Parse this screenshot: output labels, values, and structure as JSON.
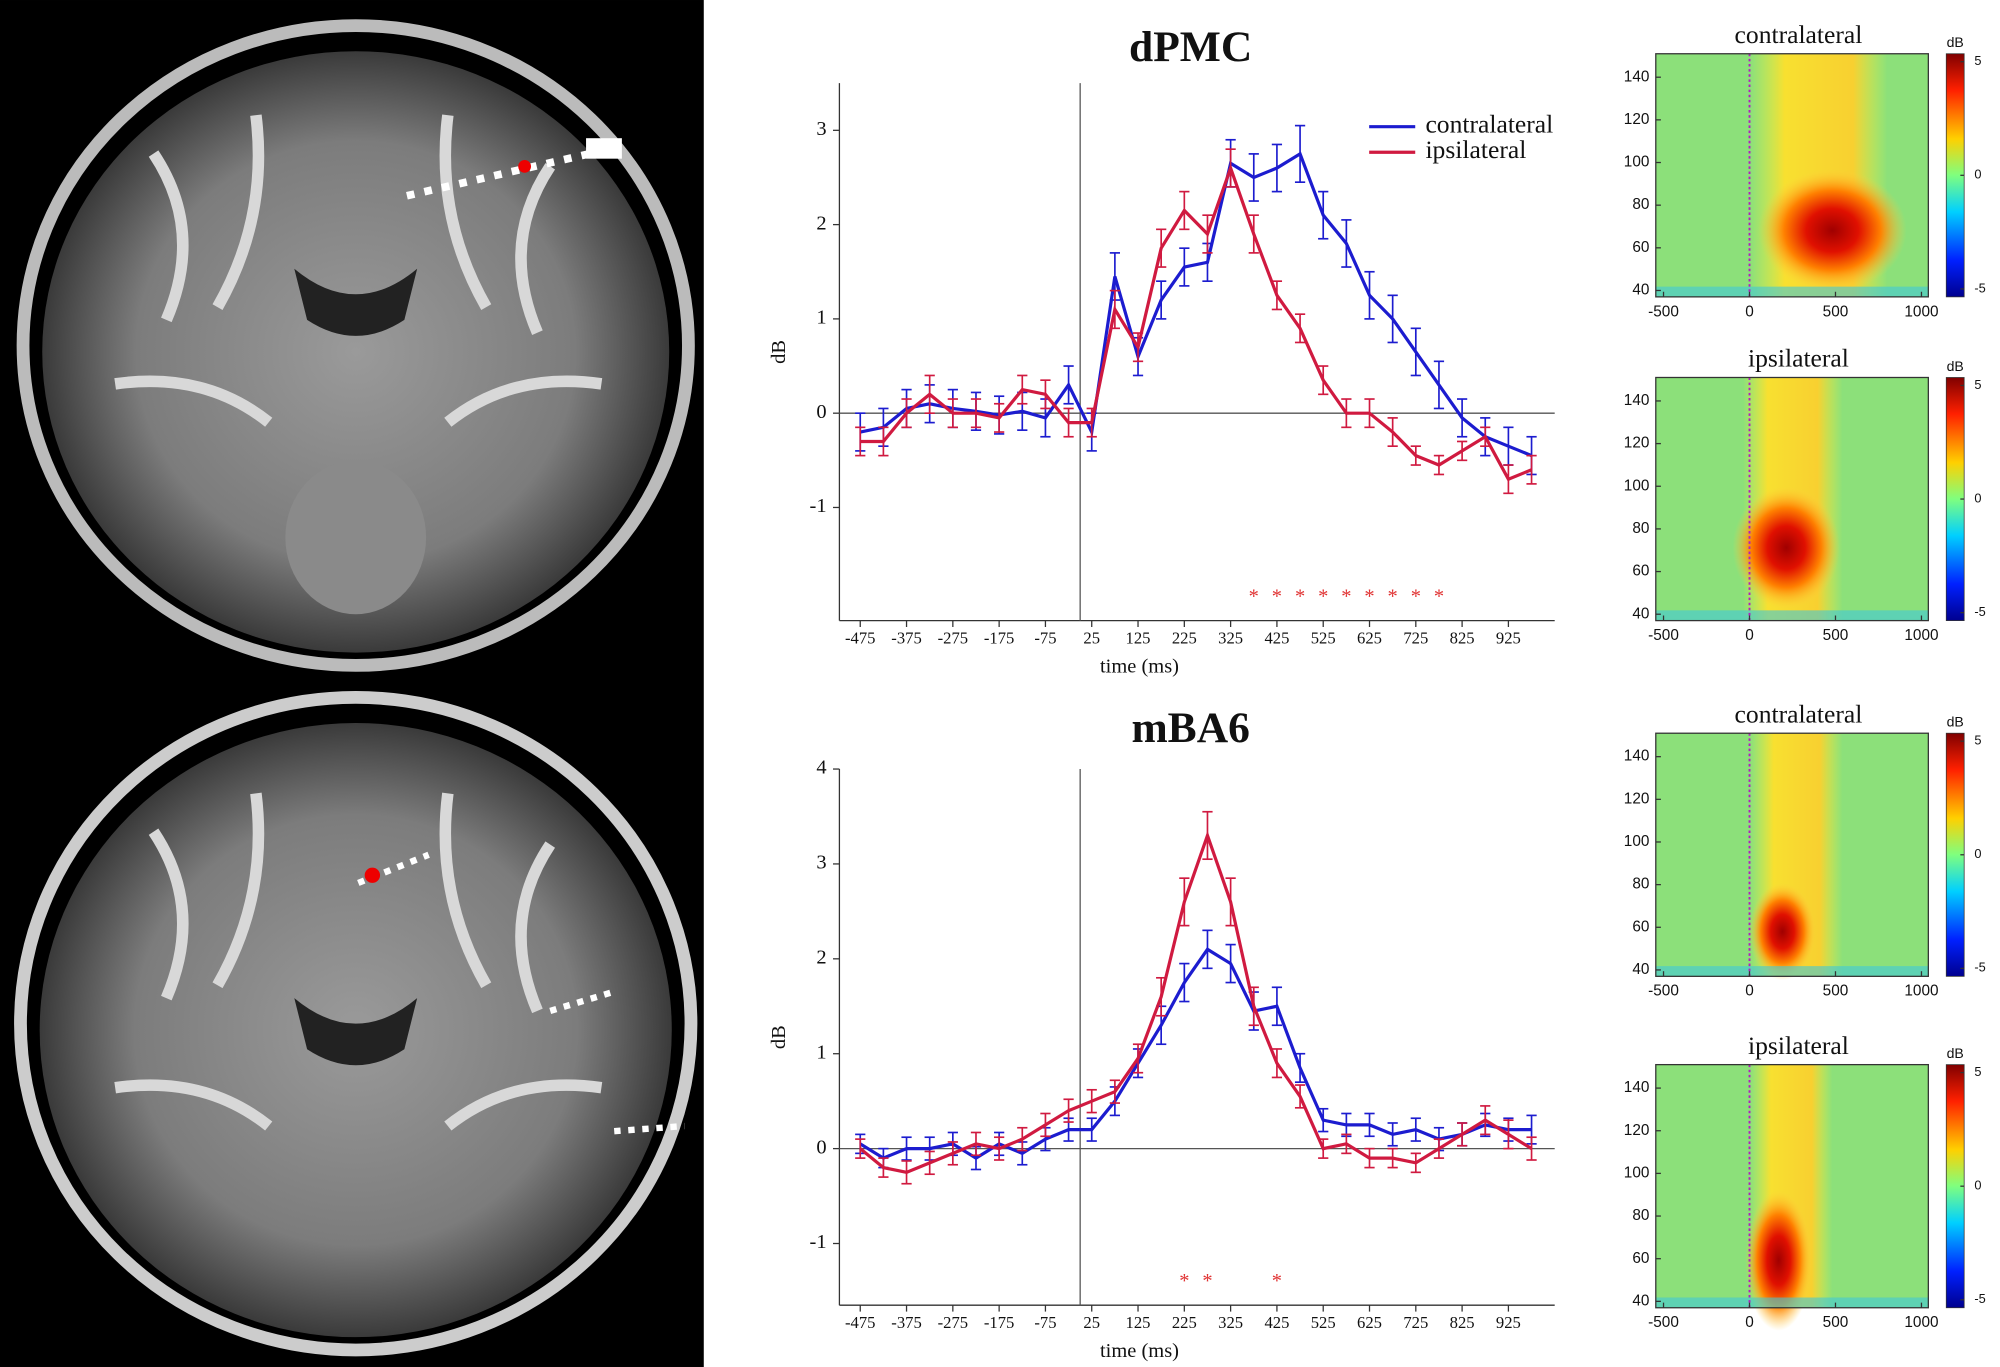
{
  "chart_data": [
    {
      "type": "line",
      "title": "dPMC",
      "x_label": "time (ms)",
      "y_label": "dB",
      "x": [
        -475,
        -425,
        -375,
        -325,
        -275,
        -225,
        -175,
        -125,
        -75,
        -25,
        25,
        75,
        125,
        175,
        225,
        275,
        325,
        375,
        425,
        475,
        525,
        575,
        625,
        675,
        725,
        775,
        825,
        875,
        925,
        975
      ],
      "series": [
        {
          "name": "contralateral",
          "color": "#1c1ccf",
          "values": [
            -0.2,
            -0.15,
            0.05,
            0.1,
            0.05,
            0.02,
            -0.02,
            0.02,
            -0.05,
            0.3,
            -0.2,
            1.45,
            0.6,
            1.2,
            1.55,
            1.6,
            2.65,
            2.5,
            2.6,
            2.75,
            2.1,
            1.8,
            1.25,
            1.0,
            0.65,
            0.3,
            -0.05,
            -0.25,
            -0.35,
            -0.45
          ],
          "errors": [
            0.2,
            0.2,
            0.2,
            0.2,
            0.2,
            0.2,
            0.2,
            0.2,
            0.2,
            0.2,
            0.2,
            0.25,
            0.2,
            0.2,
            0.2,
            0.2,
            0.25,
            0.25,
            0.25,
            0.3,
            0.25,
            0.25,
            0.25,
            0.25,
            0.25,
            0.25,
            0.2,
            0.2,
            0.2,
            0.2
          ]
        },
        {
          "name": "ipsilateral",
          "color": "#d01a40",
          "values": [
            -0.3,
            -0.3,
            0.0,
            0.2,
            0.0,
            0.0,
            -0.05,
            0.25,
            0.2,
            -0.1,
            -0.1,
            1.1,
            0.7,
            1.75,
            2.15,
            1.9,
            2.6,
            1.9,
            1.25,
            0.9,
            0.35,
            0.0,
            0.0,
            -0.2,
            -0.45,
            -0.55,
            -0.4,
            -0.25,
            -0.7,
            -0.6
          ],
          "errors": [
            0.15,
            0.15,
            0.15,
            0.2,
            0.15,
            0.15,
            0.15,
            0.15,
            0.15,
            0.15,
            0.15,
            0.2,
            0.15,
            0.2,
            0.2,
            0.2,
            0.2,
            0.2,
            0.15,
            0.15,
            0.15,
            0.15,
            0.15,
            0.15,
            0.1,
            0.1,
            0.1,
            0.1,
            0.15,
            0.15
          ]
        }
      ],
      "xlim": [
        -520,
        1025
      ],
      "xticks": [
        -475,
        -375,
        -275,
        -175,
        -75,
        25,
        125,
        225,
        325,
        425,
        525,
        625,
        725,
        825,
        925
      ],
      "ylim": [
        -2.2,
        3.5
      ],
      "yticks": [
        -1,
        0,
        1,
        2,
        3
      ],
      "legend": "upper right",
      "significance": {
        "label": "*",
        "x": [
          375,
          425,
          475,
          525,
          575,
          625,
          675,
          725,
          775
        ]
      }
    },
    {
      "type": "line",
      "title": "mBA6",
      "x_label": "time (ms)",
      "y_label": "dB",
      "x": [
        -475,
        -425,
        -375,
        -325,
        -275,
        -225,
        -175,
        -125,
        -75,
        -25,
        25,
        75,
        125,
        175,
        225,
        275,
        325,
        375,
        425,
        475,
        525,
        575,
        625,
        675,
        725,
        775,
        825,
        875,
        925,
        975
      ],
      "series": [
        {
          "name": "contralateral",
          "color": "#1c1ccf",
          "values": [
            0.05,
            -0.1,
            0.0,
            0.0,
            0.05,
            -0.1,
            0.05,
            -0.05,
            0.1,
            0.2,
            0.2,
            0.5,
            0.9,
            1.3,
            1.75,
            2.1,
            1.95,
            1.45,
            1.5,
            0.85,
            0.3,
            0.25,
            0.25,
            0.15,
            0.2,
            0.1,
            0.15,
            0.25,
            0.2,
            0.2
          ],
          "errors": [
            0.1,
            0.1,
            0.12,
            0.12,
            0.12,
            0.12,
            0.12,
            0.12,
            0.12,
            0.12,
            0.12,
            0.15,
            0.15,
            0.2,
            0.2,
            0.2,
            0.2,
            0.2,
            0.2,
            0.15,
            0.12,
            0.12,
            0.12,
            0.12,
            0.12,
            0.12,
            0.12,
            0.12,
            0.12,
            0.15
          ]
        },
        {
          "name": "ipsilateral",
          "color": "#d01a40",
          "values": [
            0.0,
            -0.2,
            -0.25,
            -0.15,
            -0.05,
            0.05,
            0.0,
            0.1,
            0.25,
            0.4,
            0.5,
            0.6,
            0.95,
            1.6,
            2.6,
            3.3,
            2.6,
            1.5,
            0.9,
            0.55,
            0.0,
            0.05,
            -0.1,
            -0.1,
            -0.15,
            0.0,
            0.15,
            0.3,
            0.15,
            0.0
          ],
          "errors": [
            0.1,
            0.1,
            0.12,
            0.12,
            0.12,
            0.12,
            0.12,
            0.12,
            0.12,
            0.12,
            0.12,
            0.12,
            0.15,
            0.2,
            0.25,
            0.25,
            0.25,
            0.2,
            0.15,
            0.12,
            0.1,
            0.1,
            0.1,
            0.1,
            0.1,
            0.1,
            0.12,
            0.15,
            0.15,
            0.12
          ]
        }
      ],
      "xlim": [
        -520,
        1025
      ],
      "xticks": [
        -475,
        -375,
        -275,
        -175,
        -75,
        25,
        125,
        225,
        325,
        425,
        525,
        625,
        725,
        825,
        925
      ],
      "ylim": [
        -1.65,
        4
      ],
      "yticks": [
        -1,
        0,
        1,
        2,
        3,
        4
      ],
      "significance": {
        "label": "*",
        "x": [
          225,
          275,
          425
        ]
      }
    },
    {
      "type": "heatmap",
      "title": "contralateral",
      "xlim": [
        -545,
        1040
      ],
      "xticks": [
        -500,
        0,
        500,
        1000
      ],
      "ylim": [
        37,
        151
      ],
      "yticks": [
        40,
        60,
        80,
        100,
        120,
        140
      ],
      "colorbar": {
        "label": "dB",
        "lim": [
          -5.35,
          5.35
        ],
        "ticks": [
          -5,
          0,
          5
        ]
      }
    },
    {
      "type": "heatmap",
      "title": "ipsilateral",
      "xlim": [
        -545,
        1040
      ],
      "xticks": [
        -500,
        0,
        500,
        1000
      ],
      "ylim": [
        37,
        151
      ],
      "yticks": [
        40,
        60,
        80,
        100,
        120,
        140
      ],
      "colorbar": {
        "label": "dB",
        "lim": [
          -5.35,
          5.35
        ],
        "ticks": [
          -5,
          0,
          5
        ]
      }
    },
    {
      "type": "heatmap",
      "title": "contralateral",
      "xlim": [
        -545,
        1040
      ],
      "xticks": [
        -500,
        0,
        500,
        1000
      ],
      "ylim": [
        37,
        151
      ],
      "yticks": [
        40,
        60,
        80,
        100,
        120,
        140
      ],
      "colorbar": {
        "label": "dB",
        "lim": [
          -5.35,
          5.35
        ],
        "ticks": [
          -5,
          0,
          5
        ]
      }
    },
    {
      "type": "heatmap",
      "title": "ipsilateral",
      "xlim": [
        -545,
        1040
      ],
      "xticks": [
        -500,
        0,
        500,
        1000
      ],
      "ylim": [
        37,
        151
      ],
      "yticks": [
        40,
        60,
        80,
        100,
        120,
        140
      ],
      "colorbar": {
        "label": "dB",
        "lim": [
          -5.35,
          5.35
        ],
        "ticks": [
          -5,
          0,
          5
        ]
      }
    }
  ]
}
